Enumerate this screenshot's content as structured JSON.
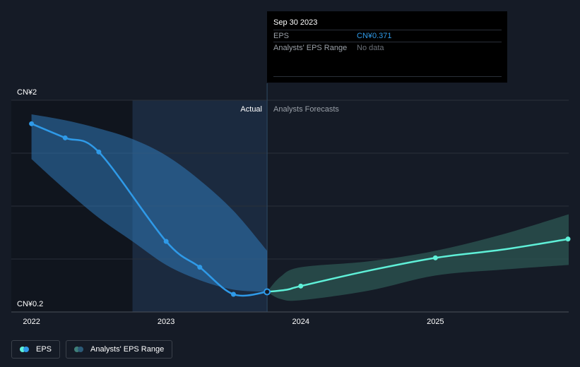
{
  "tooltip": {
    "date": "Sep 30 2023",
    "rows": [
      {
        "label": "EPS",
        "value": "CN¥0.371"
      },
      {
        "label": "Analysts' EPS Range",
        "value": "No data"
      }
    ]
  },
  "labels": {
    "actual": "Actual",
    "forecast": "Analysts Forecasts"
  },
  "legend": {
    "eps": "EPS",
    "range": "Analysts' EPS Range"
  },
  "colors": {
    "background": "#151b26",
    "eps_line": "#2f9ae8",
    "forecast_line": "#5ff0d8",
    "actual_band": "#2f78b8",
    "forecast_band": "#2e5a55",
    "legend_eps_dot": "#5ff0d8",
    "legend_range_dot": "#3f7f78"
  },
  "chart_data": {
    "type": "line",
    "y_ticks": [
      "CN¥2",
      "CN¥0.2"
    ],
    "ylim": [
      0.2,
      2
    ],
    "x_ticks": [
      "2022",
      "2023",
      "2024",
      "2025"
    ],
    "xlim": [
      2021.85,
      2025.99
    ],
    "split_x": 2023.75,
    "highlight_start_x": 2022.75,
    "series": [
      {
        "name": "EPS",
        "points": [
          [
            2022.0,
            1.8
          ],
          [
            2022.25,
            1.68
          ],
          [
            2022.5,
            1.56
          ],
          [
            2023.0,
            0.8
          ],
          [
            2023.25,
            0.58
          ],
          [
            2023.5,
            0.35
          ],
          [
            2023.75,
            0.371
          ]
        ]
      },
      {
        "name": "EPS forecast",
        "points": [
          [
            2023.75,
            0.371
          ],
          [
            2024.0,
            0.42
          ],
          [
            2025.0,
            0.66
          ],
          [
            2025.99,
            0.82
          ]
        ],
        "smooth_points": [
          [
            2023.75,
            0.371
          ],
          [
            2023.9,
            0.39
          ],
          [
            2024.0,
            0.42
          ],
          [
            2024.5,
            0.55
          ],
          [
            2025.0,
            0.66
          ],
          [
            2025.5,
            0.73
          ],
          [
            2025.99,
            0.82
          ]
        ]
      }
    ],
    "actual_band": {
      "upper": [
        [
          2022.0,
          1.88
        ],
        [
          2022.25,
          1.83
        ],
        [
          2022.5,
          1.76
        ],
        [
          2022.75,
          1.67
        ],
        [
          2023.0,
          1.53
        ],
        [
          2023.25,
          1.32
        ],
        [
          2023.5,
          1.06
        ],
        [
          2023.75,
          0.72
        ]
      ],
      "lower": [
        [
          2022.0,
          1.5
        ],
        [
          2022.25,
          1.24
        ],
        [
          2022.5,
          1.0
        ],
        [
          2022.75,
          0.8
        ],
        [
          2023.0,
          0.6
        ],
        [
          2023.25,
          0.47
        ],
        [
          2023.5,
          0.39
        ],
        [
          2023.75,
          0.371
        ]
      ]
    },
    "forecast_band": {
      "upper": [
        [
          2023.75,
          0.371
        ],
        [
          2023.85,
          0.5
        ],
        [
          2024.0,
          0.58
        ],
        [
          2024.5,
          0.63
        ],
        [
          2025.0,
          0.72
        ],
        [
          2025.5,
          0.86
        ],
        [
          2025.99,
          1.03
        ]
      ],
      "lower": [
        [
          2023.75,
          0.371
        ],
        [
          2023.85,
          0.31
        ],
        [
          2024.0,
          0.3
        ],
        [
          2024.5,
          0.38
        ],
        [
          2025.0,
          0.51
        ],
        [
          2025.5,
          0.56
        ],
        [
          2025.99,
          0.6
        ]
      ]
    }
  }
}
